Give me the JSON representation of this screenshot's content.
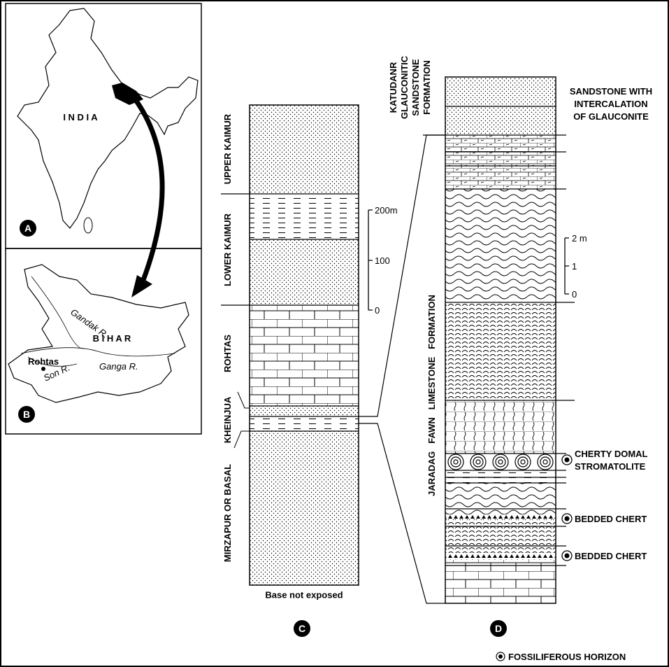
{
  "panel_a": {
    "letter": "A",
    "country": "I N D I A"
  },
  "panel_b": {
    "letter": "B",
    "state": "B I H A R",
    "town": "Rohtas",
    "rivers": [
      "Gandak R.",
      "Ganga R.",
      "Son R."
    ]
  },
  "panel_c": {
    "letter": "C",
    "units": [
      "UPPER KAIMUR",
      "LOWER KAIMUR",
      "ROHTAS",
      "KHEINJUA",
      "MIRZAPUR OR BASAL"
    ],
    "scale": [
      "200m",
      "100",
      "0"
    ],
    "base_note": "Base not exposed"
  },
  "panel_d": {
    "letter": "D",
    "top_formation": [
      "KATUDANR",
      "GLAUCONITIC",
      "SANDSTONE",
      "FORMATION"
    ],
    "main_formation": "JARADAG   FAWN   LIMESTONE   FORMATION",
    "sandstone_note": [
      "SANDSTONE WITH",
      "INTERCALATION",
      "OF GLAUCONITE"
    ],
    "stromatolite": [
      "CHERTY DOMAL",
      "STROMATOLITE"
    ],
    "chert_labels": [
      "BEDDED CHERT",
      "BEDDED CHERT"
    ],
    "scale": [
      "2 m",
      "1",
      "0"
    ]
  },
  "legend": "FOSSILIFEROUS HORIZON"
}
